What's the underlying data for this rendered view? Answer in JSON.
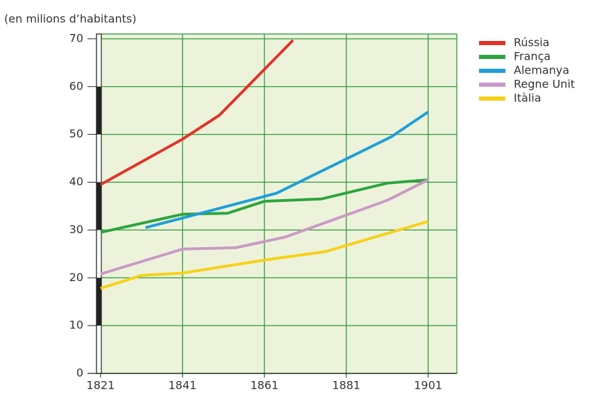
{
  "chart_data": {
    "type": "line",
    "title": "(en milions d’habitants)",
    "xlim": [
      1820,
      1908
    ],
    "xticks": [
      1821,
      1841,
      1861,
      1881,
      1901
    ],
    "ylim": [
      0,
      71
    ],
    "yticks": [
      0,
      10,
      20,
      30,
      40,
      50,
      60,
      70
    ],
    "grid": true,
    "legend": "right",
    "series": [
      {
        "name": "Rússia",
        "color": "#e0342a",
        "x": [
          1821,
          1841,
          1850,
          1868
        ],
        "values": [
          39.5,
          49,
          54,
          69.7
        ]
      },
      {
        "name": "França",
        "color": "#2ea43f",
        "x": [
          1821,
          1841,
          1852,
          1861,
          1875,
          1891,
          1901
        ],
        "values": [
          29.5,
          33.3,
          33.5,
          36,
          36.5,
          39.8,
          40.5
        ]
      },
      {
        "name": "Alemanya",
        "color": "#1e9fd8",
        "x": [
          1832,
          1841,
          1864,
          1892,
          1901
        ],
        "values": [
          30.5,
          32.5,
          37.7,
          49.5,
          54.7
        ]
      },
      {
        "name": "Regne Unit",
        "color": "#c99ac9",
        "x": [
          1821,
          1841,
          1854,
          1866,
          1891,
          1901
        ],
        "values": [
          20.8,
          26,
          26.3,
          28.5,
          36.2,
          40.5
        ]
      },
      {
        "name": "Itàlia",
        "color": "#f7d119",
        "x": [
          1821,
          1831,
          1841,
          1861,
          1876,
          1901
        ],
        "values": [
          17.8,
          20.5,
          21,
          23.7,
          25.5,
          31.8
        ]
      }
    ]
  }
}
